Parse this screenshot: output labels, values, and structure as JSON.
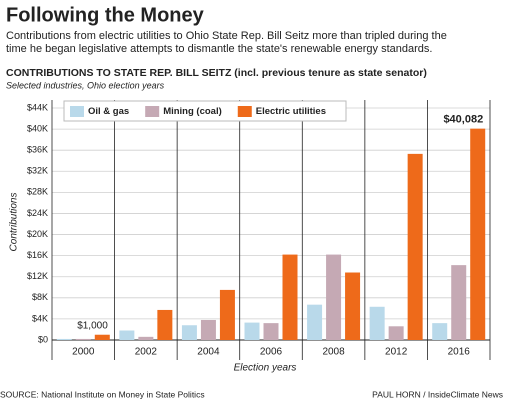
{
  "chart_data": {
    "type": "bar",
    "title": "Following the Money",
    "subtitle": [
      "Contributions from electric utilities to Ohio State Rep. Bill Seitz more than tripled during the",
      "time he began legislative attempts to dismantle the state's renewable energy standards."
    ],
    "chart_title": "CONTRIBUTIONS TO STATE REP. BILL SEITZ (incl. previous tenure as state senator)",
    "chart_subtitle": "Selected industries, Ohio election years",
    "y_label": "Contributions",
    "x_label": "Election years",
    "source": "SOURCE: National Institute on Money in State Politics",
    "credit": "PAUL HORN / InsideClimate News",
    "categories": [
      "2000",
      "2002",
      "2004",
      "2006",
      "2008",
      "2012",
      "2016"
    ],
    "series": [
      {
        "name": "Oil & gas",
        "color": "#b9d9ea",
        "values": [
          200,
          1800,
          2800,
          3300,
          6700,
          6300,
          3200
        ]
      },
      {
        "name": "Mining (coal)",
        "color": "#c5a9b4",
        "values": [
          200,
          600,
          3800,
          3200,
          16200,
          2600,
          14200
        ]
      },
      {
        "name": "Electric utilities",
        "color": "#ee6a1a",
        "values": [
          1000,
          5700,
          9500,
          16200,
          12800,
          35300,
          40082
        ],
        "value_labels": [
          "$1,000",
          null,
          null,
          null,
          null,
          null,
          "$40,082"
        ]
      }
    ],
    "ylim": [
      0,
      44000
    ],
    "yticks": [
      {
        "value": 0,
        "label": "$0"
      },
      {
        "value": 4000,
        "label": "$4K"
      },
      {
        "value": 8000,
        "label": "$8K"
      },
      {
        "value": 12000,
        "label": "$12K"
      },
      {
        "value": 16000,
        "label": "$16K"
      },
      {
        "value": 20000,
        "label": "$20K"
      },
      {
        "value": 24000,
        "label": "$24K"
      },
      {
        "value": 28000,
        "label": "$28K"
      },
      {
        "value": 32000,
        "label": "$32K"
      },
      {
        "value": 36000,
        "label": "$36K"
      },
      {
        "value": 40000,
        "label": "$40K"
      },
      {
        "value": 44000,
        "label": "$44K"
      }
    ],
    "grid": true
  }
}
